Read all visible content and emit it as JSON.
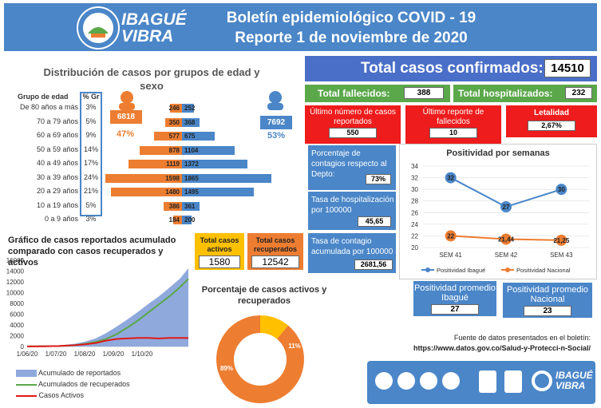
{
  "header": {
    "logo_line1": "IBAGUÉ",
    "logo_line2": "VIBRA",
    "title1": "Boletín epidemiológico COVID - 19",
    "title2": "Reporte 1 de noviembre de 2020"
  },
  "age": {
    "title": "Distribución de casos por grupos de edad y sexo",
    "col_group": "Grupo de edad",
    "col_pct": "% Gr",
    "rows": [
      {
        "label": "De 80 años a más",
        "pct": "3%",
        "f": 246,
        "m": 252
      },
      {
        "label": "70 a 79 años",
        "pct": "5%",
        "f": 350,
        "m": 368
      },
      {
        "label": "60 a 69 años",
        "pct": "9%",
        "f": 577,
        "m": 675
      },
      {
        "label": "50 a 59 años",
        "pct": "14%",
        "f": 878,
        "m": 1104
      },
      {
        "label": "40 a 49 años",
        "pct": "17%",
        "f": 1119,
        "m": 1372
      },
      {
        "label": "30 a 39 años",
        "pct": "24%",
        "f": 1598,
        "m": 1865
      },
      {
        "label": "20 a 29 años",
        "pct": "21%",
        "f": 1480,
        "m": 1495
      },
      {
        "label": "10 a 19 años",
        "pct": "5%",
        "f": 386,
        "m": 361
      },
      {
        "label": "0 a 9 años",
        "pct": "3%",
        "f": 184,
        "m": 200
      }
    ],
    "female_total": "6818",
    "female_pct": "47%",
    "male_total": "7692",
    "male_pct": "53%"
  },
  "totals": {
    "confirmed_label": "Total casos confirmados:",
    "confirmed": "14510",
    "deaths_label": "Total fallecidos:",
    "deaths": "388",
    "hosp_label": "Total hospitalizados:",
    "hosp": "232",
    "last_cases_label": "Último número de casos reportados",
    "last_cases": "550",
    "last_deaths_label": "Último reporte de fallecidos",
    "last_deaths": "10",
    "lethality_label": "Letalidad",
    "lethality": "2,67%"
  },
  "rates": {
    "contagion_pct_label": "Porcentaje de contagios respecto al Depto:",
    "contagion_pct": "73%",
    "hosp_rate_label": "Tasa de hospitalización por 100000",
    "hosp_rate": "45,65",
    "cont_rate_label": "Tasa de contagio acumulada por 100000",
    "cont_rate": "2681,56"
  },
  "cumulative": {
    "title": "Gráfico de casos reportados acumulado comparado con casos recuperados y activos",
    "active_label": "Total casos activos",
    "active": "1580",
    "recovered_label": "Total casos recuperados",
    "recovered": "12542",
    "legend": [
      "Acumulado de reportados",
      "Acumulados de recuperados",
      "Casos Activos"
    ]
  },
  "positivity": {
    "title": "Positividad por semanas",
    "avg_ibague_label": "Positividad promedio Ibagué",
    "avg_ibague": "27",
    "avg_nacional_label": "Positividad promedio Nacional",
    "avg_nacional": "23",
    "legend": [
      "Positividad Ibagué",
      "Positividad Nacional"
    ]
  },
  "donut": {
    "title": "Porcentaje de casos activos y recuperados",
    "active_pct": "11%",
    "recovered_pct": "89%"
  },
  "source": {
    "line1": "Fuente de datos presentados en el boletín:",
    "line2": "https://www.datos.gov.co/Salud-y-Protecci-n-Social/"
  },
  "footer": {
    "logo_line1": "IBAGUÉ",
    "logo_line2": "VIBRA"
  },
  "colors": {
    "blue": "#4a86c8",
    "orange": "#ed7d31",
    "green": "#5aa84a",
    "red": "#ee1c1c",
    "yellow": "#ffc000"
  },
  "chart_data": [
    {
      "type": "line",
      "title": "Positividad por semanas",
      "categories": [
        "SEM 41",
        "SEM 42",
        "SEM 43"
      ],
      "ylim": [
        20,
        34
      ],
      "yticks": [
        20,
        22,
        24,
        26,
        28,
        30,
        32,
        34
      ],
      "series": [
        {
          "name": "Positividad Ibagué",
          "values": [
            32,
            27,
            30
          ],
          "labels": [
            "32",
            "27",
            "30"
          ]
        },
        {
          "name": "Positividad Nacional",
          "values": [
            22,
            21.44,
            21.25
          ],
          "labels": [
            "22",
            "21,44",
            "21,25"
          ]
        }
      ]
    },
    {
      "type": "area",
      "title": "Gráfico de casos reportados acumulado comparado con casos recuperados y activos",
      "xticks": [
        "1/06/20",
        "1/07/20",
        "1/08/20",
        "1/09/20",
        "1/10/20"
      ],
      "ylim": [
        0,
        16000
      ],
      "yticks": [
        0,
        2000,
        4000,
        6000,
        8000,
        10000,
        12000,
        14000,
        16000
      ],
      "series": [
        {
          "name": "Acumulado de reportados",
          "x": [
            0,
            15,
            30,
            45,
            55,
            65,
            75,
            85,
            95,
            105,
            115,
            125,
            135,
            145,
            153
          ],
          "values": [
            40,
            80,
            200,
            500,
            900,
            1500,
            2500,
            3700,
            5000,
            6400,
            7900,
            9300,
            10900,
            12600,
            14510
          ]
        },
        {
          "name": "Acumulados de recuperados",
          "x": [
            0,
            15,
            30,
            45,
            55,
            65,
            75,
            85,
            95,
            105,
            115,
            125,
            135,
            145,
            153
          ],
          "values": [
            20,
            50,
            100,
            250,
            500,
            850,
            1400,
            2300,
            3500,
            4800,
            6300,
            7800,
            9300,
            11000,
            12542
          ]
        },
        {
          "name": "Casos Activos",
          "x": [
            0,
            15,
            30,
            45,
            55,
            65,
            75,
            85,
            95,
            105,
            115,
            125,
            135,
            145,
            153
          ],
          "values": [
            20,
            30,
            100,
            250,
            400,
            650,
            1100,
            1400,
            1500,
            1600,
            1600,
            1500,
            1600,
            1600,
            1580
          ]
        }
      ]
    },
    {
      "type": "pie",
      "title": "Porcentaje de casos activos y recuperados",
      "categories": [
        "Activos",
        "Recuperados"
      ],
      "values": [
        11,
        89
      ]
    }
  ]
}
